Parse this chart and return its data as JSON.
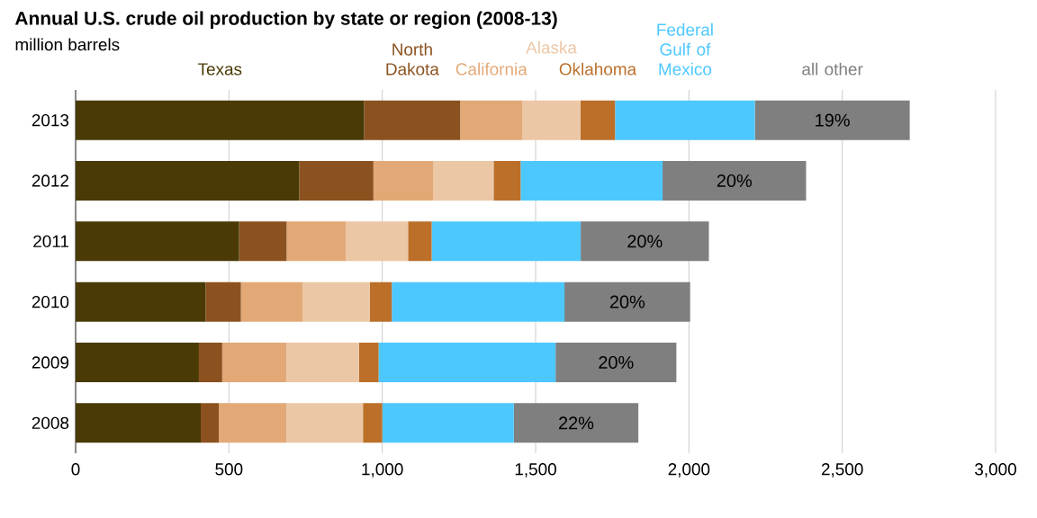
{
  "chart_data": {
    "type": "bar",
    "orientation": "horizontal",
    "stacked": true,
    "title": "Annual U.S. crude oil production by state or region (2008-13)",
    "subtitle": "million barrels",
    "categories": [
      "2013",
      "2012",
      "2011",
      "2010",
      "2009",
      "2008"
    ],
    "series": [
      {
        "name": "Texas",
        "color": "#4a3a06",
        "values": [
          941,
          729,
          533,
          424,
          402,
          408
        ]
      },
      {
        "name": "North Dakota",
        "color": "#8b5220",
        "values": [
          313,
          242,
          155,
          115,
          76,
          59
        ]
      },
      {
        "name": "California",
        "color": "#e2a977",
        "values": [
          203,
          196,
          194,
          202,
          210,
          221
        ]
      },
      {
        "name": "Alaska",
        "color": "#ecc7a5",
        "values": [
          189,
          196,
          202,
          218,
          236,
          249
        ]
      },
      {
        "name": "Oklahoma",
        "color": "#bb6f29",
        "values": [
          113,
          88,
          77,
          72,
          64,
          63
        ]
      },
      {
        "name": "Federal Gulf of Mexico",
        "color": "#4dc8ff",
        "values": [
          456,
          463,
          486,
          563,
          577,
          429
        ]
      },
      {
        "name": "all other",
        "color": "#7f7f7f",
        "values": [
          505,
          468,
          418,
          410,
          394,
          406
        ]
      }
    ],
    "annotations": [
      {
        "text": "19%",
        "y": "2013"
      },
      {
        "text": "20%",
        "y": "2012"
      },
      {
        "text": "20%",
        "y": "2011"
      },
      {
        "text": "20%",
        "y": "2010"
      },
      {
        "text": "20%",
        "y": "2009"
      },
      {
        "text": "22%",
        "y": "2008"
      }
    ],
    "xlim": [
      0,
      3000
    ],
    "xticks": [
      0,
      500,
      {
        "value": 1000,
        "label": "1,000"
      },
      {
        "value": 1500,
        "label": "1,500"
      },
      {
        "value": 2000,
        "label": "2,000"
      },
      {
        "value": 2500,
        "label": "2,500"
      },
      {
        "value": 3000,
        "label": "3,000"
      }
    ],
    "grid": "x",
    "legend": "top"
  }
}
